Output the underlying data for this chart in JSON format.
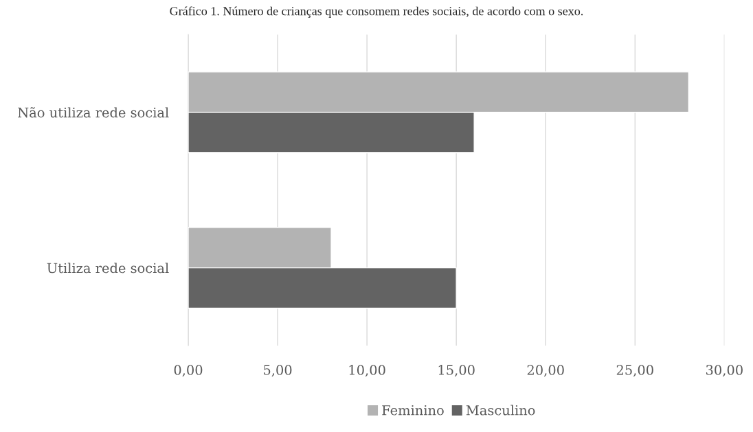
{
  "chart_data": {
    "type": "bar",
    "orientation": "horizontal",
    "title": "Gráfico 1. Número de crianças que consomem redes sociais, de acordo com o sexo.",
    "categories": [
      "Não utiliza rede social",
      "Utiliza rede social"
    ],
    "series": [
      {
        "name": "Feminino",
        "color": "#b3b3b3",
        "values": [
          28,
          8
        ]
      },
      {
        "name": "Masculino",
        "color": "#636363",
        "values": [
          16,
          15
        ]
      }
    ],
    "xlim": [
      0,
      30
    ],
    "xticks": [
      {
        "value": 0,
        "label": "0,00"
      },
      {
        "value": 5,
        "label": "5,00"
      },
      {
        "value": 10,
        "label": "10,00"
      },
      {
        "value": 15,
        "label": "15,00"
      },
      {
        "value": 20,
        "label": "20,00"
      },
      {
        "value": 25,
        "label": "25,00"
      },
      {
        "value": 30,
        "label": "30,00"
      }
    ],
    "grid": "x",
    "legend": "bottom"
  }
}
